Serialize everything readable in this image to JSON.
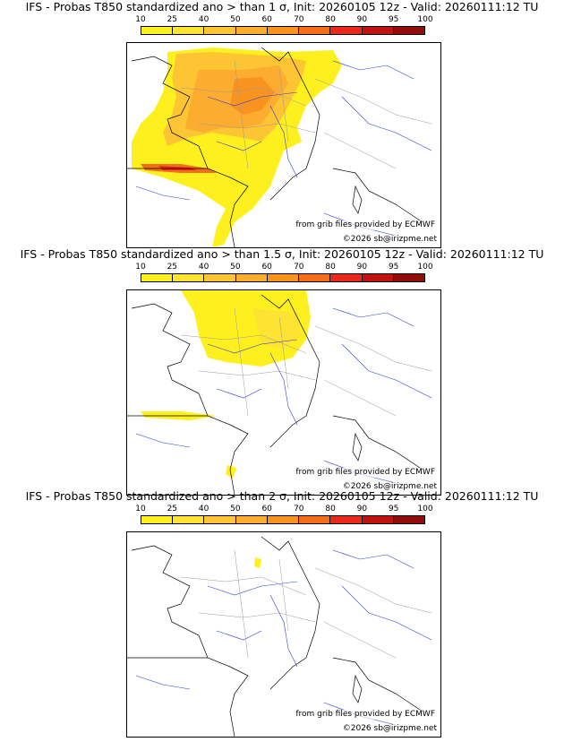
{
  "colorbar": {
    "labels": [
      "10",
      "25",
      "40",
      "50",
      "60",
      "70",
      "80",
      "90",
      "95",
      "100"
    ],
    "colors": [
      "#fef01e",
      "#fee432",
      "#fdc433",
      "#fcad30",
      "#f9931f",
      "#f46d18",
      "#e8291b",
      "#c0120f",
      "#920c09",
      "#5e0505"
    ]
  },
  "panels": [
    {
      "title": "IFS - Probas T850  standardized ano > than 1 σ, Init: 20260105 12z - Valid: 20260111:12 TU",
      "credit": "from grib files provided by ECMWF",
      "copyright": "©2026 sb@irizpme.net"
    },
    {
      "title": "IFS - Probas T850  standardized ano > than 1.5 σ, Init: 20260105 12z - Valid: 20260111:12 TU",
      "credit": "from grib files provided by ECMWF",
      "copyright": "©2026 sb@irizpme.net"
    },
    {
      "title": "IFS - Probas T850  standardized ano > than 2 σ, Init: 20260105 12z - Valid: 20260111:12 TU",
      "credit": "from grib files provided by ECMWF",
      "copyright": "©2026 sb@irizpme.net"
    }
  ]
}
